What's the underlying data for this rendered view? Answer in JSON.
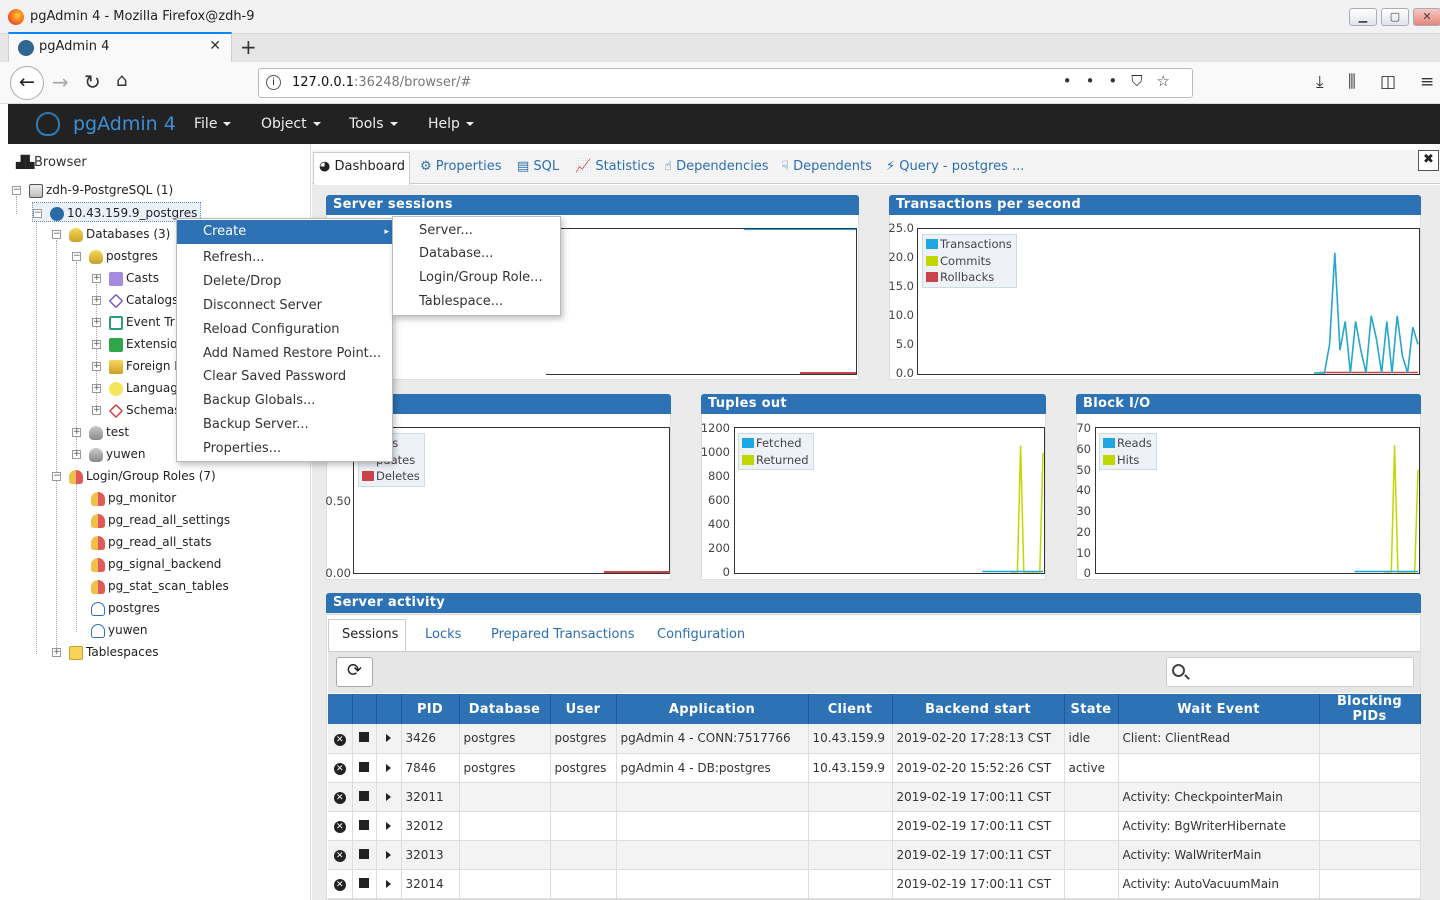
{
  "window": {
    "title": "pgAdmin 4 - Mozilla Firefox@zdh-9",
    "tab_title": "pgAdmin 4"
  },
  "address": {
    "host": "127.0.0.1",
    "rest": ":36248/browser/#"
  },
  "app": {
    "name": "pgAdmin 4",
    "menus": [
      "File",
      "Object",
      "Tools",
      "Help"
    ]
  },
  "browser": {
    "title": "Browser",
    "tree": {
      "server_group": "zdh-9-PostgreSQL (1)",
      "server": "10.43.159.9_postgres",
      "databases": "Databases (3)",
      "db_postgres": "postgres",
      "db_children": [
        "Casts",
        "Catalogs",
        "Event Tr",
        "Extensio",
        "Foreign I",
        "Languag",
        "Schemas"
      ],
      "db_test": "test",
      "db_yuwen": "yuwen",
      "roles": "Login/Group Roles (7)",
      "role_items": [
        "pg_monitor",
        "pg_read_all_settings",
        "pg_read_all_stats",
        "pg_signal_backend",
        "pg_stat_scan_tables",
        "postgres",
        "yuwen"
      ],
      "tablespaces": "Tablespaces"
    }
  },
  "context_menu": {
    "items": [
      "Create",
      "Refresh...",
      "Delete/Drop",
      "Disconnect Server",
      "Reload Configuration",
      "Add Named Restore Point...",
      "Clear Saved Password",
      "Backup Globals...",
      "Backup Server...",
      "Properties..."
    ],
    "submenu": [
      "Server...",
      "Database...",
      "Login/Group Role...",
      "Tablespace..."
    ]
  },
  "right_tabs": [
    "Dashboard",
    "Properties",
    "SQL",
    "Statistics",
    "Dependencies",
    "Dependents",
    "Query - postgres ..."
  ],
  "colors": {
    "accent": "#2c72b5",
    "series_blue": "#1ea7e1",
    "series_green": "#c0d800",
    "series_red": "#c9444a"
  },
  "panels": {
    "server_sessions": {
      "title": "Server sessions"
    },
    "tps": {
      "title": "Transactions per second",
      "yticks": [
        "25.0",
        "20.0",
        "15.0",
        "10.0",
        "5.0",
        "0.0"
      ],
      "legend": [
        "Transactions",
        "Commits",
        "Rollbacks"
      ]
    },
    "tuples_in": {
      "yticks": [
        "0.50",
        "0.00"
      ],
      "legend": [
        "erts",
        "pdates",
        "Deletes"
      ]
    },
    "tuples_out": {
      "title": "Tuples out",
      "yticks": [
        "1200",
        "1000",
        "800",
        "600",
        "400",
        "200",
        "0"
      ],
      "legend": [
        "Fetched",
        "Returned"
      ]
    },
    "block_io": {
      "title": "Block I/O",
      "yticks": [
        "70",
        "60",
        "50",
        "40",
        "30",
        "20",
        "10",
        "0"
      ],
      "legend": [
        "Reads",
        "Hits"
      ]
    },
    "server_activity": {
      "title": "Server activity",
      "tabs": [
        "Sessions",
        "Locks",
        "Prepared Transactions",
        "Configuration"
      ]
    }
  },
  "chart_data": [
    {
      "type": "line",
      "title": "Transactions per second",
      "ylim": [
        0,
        25
      ],
      "series": [
        {
          "name": "Transactions",
          "values": [
            0,
            0,
            0,
            0,
            0,
            0,
            0,
            0,
            0,
            0,
            0,
            0,
            0,
            0,
            0,
            0,
            0,
            0,
            0,
            0,
            0,
            0,
            0,
            0,
            0,
            0,
            0,
            0,
            0,
            0,
            0,
            0,
            0,
            0,
            0,
            0,
            0,
            0,
            0,
            0,
            0,
            0,
            0,
            0,
            0,
            0,
            0,
            0,
            0,
            0,
            0,
            0,
            0,
            0,
            0,
            0,
            0,
            0,
            0,
            0,
            0,
            0,
            0,
            0,
            0,
            0,
            0,
            0,
            0,
            0,
            0,
            0,
            0,
            0,
            0,
            0,
            0,
            0,
            0,
            5,
            21,
            4,
            9,
            0,
            9,
            4,
            0,
            10,
            6,
            0,
            9,
            0,
            10,
            3,
            0,
            8,
            5
          ]
        },
        {
          "name": "Commits",
          "values": [
            0,
            0,
            0,
            0,
            0,
            0,
            0,
            0,
            0,
            0,
            0,
            0,
            0,
            0,
            0,
            0,
            0,
            0,
            0,
            0,
            0,
            0,
            0,
            0,
            0,
            0,
            0,
            0,
            0,
            0,
            0,
            0,
            0,
            0,
            0,
            0,
            0,
            0,
            0,
            0,
            0,
            0,
            0,
            0,
            0,
            0,
            0,
            0,
            0,
            0,
            0,
            0,
            0,
            0,
            0,
            0,
            0,
            0,
            0,
            0,
            0,
            0,
            0,
            0,
            0,
            0,
            0,
            0,
            0,
            0,
            0,
            0,
            0,
            0,
            0,
            0,
            0,
            0,
            0,
            5,
            21,
            4,
            9,
            0,
            9,
            4,
            0,
            10,
            6,
            0,
            9,
            0,
            10,
            3,
            0,
            8,
            5
          ]
        },
        {
          "name": "Rollbacks",
          "values": [
            0,
            0,
            0,
            0,
            0,
            0,
            0,
            0,
            0,
            0,
            0,
            0,
            0,
            0,
            0,
            0,
            0,
            0,
            0,
            0,
            0,
            0,
            0,
            0,
            0,
            0,
            0,
            0,
            0,
            0,
            0,
            0,
            0,
            0,
            0,
            0,
            0,
            0,
            0,
            0,
            0,
            0,
            0,
            0,
            0,
            0,
            0,
            0,
            0,
            0,
            0,
            0,
            0,
            0,
            0,
            0,
            0,
            0,
            0,
            0,
            0,
            0,
            0,
            0,
            0,
            0,
            0,
            0,
            0,
            0,
            0,
            0,
            0,
            0,
            0,
            0,
            0,
            0,
            0,
            0,
            0,
            0,
            0,
            0,
            0,
            0,
            0,
            0,
            0,
            0,
            0,
            0,
            0,
            0,
            0,
            0,
            0
          ]
        }
      ]
    },
    {
      "type": "line",
      "title": "Tuples out",
      "ylim": [
        0,
        1200
      ],
      "series": [
        {
          "name": "Fetched",
          "values": [
            0,
            0,
            0,
            0,
            0,
            0,
            0,
            0,
            0,
            0,
            0,
            0,
            0,
            0,
            0,
            0,
            0,
            0,
            0,
            0,
            0,
            0,
            0,
            0,
            0,
            0,
            0,
            0,
            0,
            0,
            0,
            0,
            0,
            0,
            0,
            0,
            0,
            0,
            0,
            0,
            0,
            0,
            0,
            0,
            0,
            0,
            0,
            0,
            0,
            0,
            0,
            0,
            0,
            0,
            0,
            0,
            0,
            0,
            0,
            0,
            0,
            0,
            0,
            0,
            0,
            0,
            0,
            0,
            0,
            0,
            0,
            0,
            0,
            0,
            0,
            0,
            0,
            0,
            0,
            0,
            0,
            0,
            0,
            0,
            0,
            0,
            0,
            0,
            0,
            0,
            0,
            0,
            0,
            0,
            0,
            0,
            0
          ]
        },
        {
          "name": "Returned",
          "values": [
            0,
            0,
            0,
            0,
            0,
            0,
            0,
            0,
            0,
            0,
            0,
            0,
            0,
            0,
            0,
            0,
            0,
            0,
            0,
            0,
            0,
            0,
            0,
            0,
            0,
            0,
            0,
            0,
            0,
            0,
            0,
            0,
            0,
            0,
            0,
            0,
            0,
            0,
            0,
            0,
            0,
            0,
            0,
            0,
            0,
            0,
            0,
            0,
            0,
            0,
            0,
            0,
            0,
            0,
            0,
            0,
            0,
            0,
            0,
            0,
            0,
            0,
            0,
            0,
            0,
            0,
            0,
            0,
            0,
            0,
            0,
            0,
            0,
            0,
            0,
            0,
            0,
            0,
            0,
            0,
            0,
            0,
            0,
            0,
            0,
            0,
            0,
            0,
            0,
            1060,
            0,
            0,
            0,
            0,
            0,
            0,
            1000
          ]
        }
      ]
    },
    {
      "type": "line",
      "title": "Block I/O",
      "ylim": [
        0,
        70
      ],
      "series": [
        {
          "name": "Reads",
          "values": [
            0,
            0,
            0,
            0,
            0,
            0,
            0,
            0,
            0,
            0,
            0,
            0,
            0,
            0,
            0,
            0,
            0,
            0,
            0,
            0,
            0,
            0,
            0,
            0,
            0,
            0,
            0,
            0,
            0,
            0,
            0,
            0,
            0,
            0,
            0,
            0,
            0,
            0,
            0,
            0,
            0,
            0,
            0,
            0,
            0,
            0,
            0,
            0,
            0,
            0,
            0,
            0,
            0,
            0,
            0,
            0,
            0,
            0,
            0,
            0,
            0,
            0,
            0,
            0,
            0,
            0,
            0,
            0,
            0,
            0,
            0,
            0,
            0,
            0,
            0,
            0,
            0,
            0,
            0,
            0,
            0,
            0,
            0,
            0,
            0,
            0,
            0,
            0,
            0,
            0,
            0,
            0,
            0,
            0,
            0,
            0,
            0
          ]
        },
        {
          "name": "Hits",
          "values": [
            0,
            0,
            0,
            0,
            0,
            0,
            0,
            0,
            0,
            0,
            0,
            0,
            0,
            0,
            0,
            0,
            0,
            0,
            0,
            0,
            0,
            0,
            0,
            0,
            0,
            0,
            0,
            0,
            0,
            0,
            0,
            0,
            0,
            0,
            0,
            0,
            0,
            0,
            0,
            0,
            0,
            0,
            0,
            0,
            0,
            0,
            0,
            0,
            0,
            0,
            0,
            0,
            0,
            0,
            0,
            0,
            0,
            0,
            0,
            0,
            0,
            0,
            0,
            0,
            0,
            0,
            0,
            0,
            0,
            0,
            0,
            0,
            0,
            0,
            0,
            0,
            0,
            0,
            0,
            0,
            0,
            0,
            0,
            0,
            0,
            0,
            0,
            0,
            0,
            62,
            0,
            0,
            0,
            0,
            0,
            0,
            50
          ]
        }
      ]
    }
  ],
  "sessions": {
    "headers": [
      "PID",
      "Database",
      "User",
      "Application",
      "Client",
      "Backend start",
      "State",
      "Wait Event",
      "Blocking PIDs"
    ],
    "rows": [
      [
        "3426",
        "postgres",
        "postgres",
        "pgAdmin 4 - CONN:7517766",
        "10.43.159.9",
        "2019-02-20 17:28:13 CST",
        "idle",
        "Client: ClientRead",
        ""
      ],
      [
        "7846",
        "postgres",
        "postgres",
        "pgAdmin 4 - DB:postgres",
        "10.43.159.9",
        "2019-02-20 15:52:26 CST",
        "active",
        "",
        ""
      ],
      [
        "32011",
        "",
        "",
        "",
        "",
        "2019-02-19 17:00:11 CST",
        "",
        "Activity: CheckpointerMain",
        ""
      ],
      [
        "32012",
        "",
        "",
        "",
        "",
        "2019-02-19 17:00:11 CST",
        "",
        "Activity: BgWriterHibernate",
        ""
      ],
      [
        "32013",
        "",
        "",
        "",
        "",
        "2019-02-19 17:00:11 CST",
        "",
        "Activity: WalWriterMain",
        ""
      ],
      [
        "32014",
        "",
        "",
        "",
        "",
        "2019-02-19 17:00:11 CST",
        "",
        "Activity: AutoVacuumMain",
        ""
      ]
    ]
  }
}
